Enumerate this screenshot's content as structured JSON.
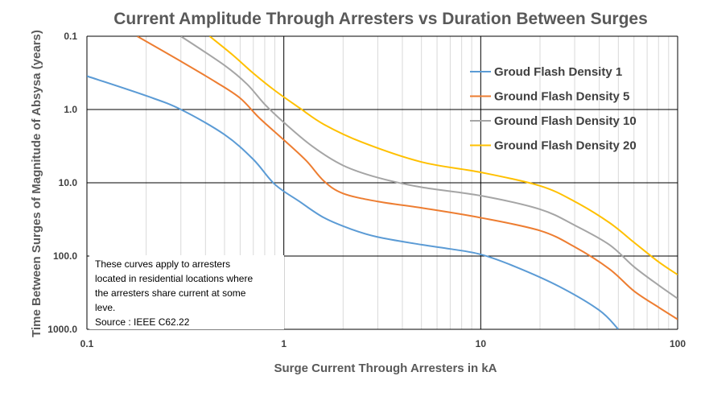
{
  "chart_data": {
    "type": "line",
    "title": "Current Amplitude Through Arresters vs Duration Between Surges",
    "xlabel": "Surge Current Through Arresters in kA",
    "ylabel": "Time Between Surges of Magnitude of Absysa (years)",
    "x_scale": "log",
    "y_scale": "log",
    "y_inverted": true,
    "xlim": [
      0.1,
      100
    ],
    "ylim": [
      0.1,
      1000
    ],
    "x_ticks": [
      0.1,
      1,
      10,
      100
    ],
    "x_tick_labels": [
      "0.1",
      "1",
      "10",
      "100"
    ],
    "y_ticks": [
      0.1,
      1,
      10,
      100,
      1000
    ],
    "y_tick_labels": [
      "0.1",
      "1.0",
      "10.0",
      "100.0",
      "1000.0"
    ],
    "grid": {
      "major": true,
      "minor_x": true
    },
    "legend": "top-right",
    "annotation": {
      "lines": [
        "These curves apply to arresters",
        "located in residential locations where",
        "the arresters share current at some",
        "leve.",
        "Source : IEEE C62.22"
      ]
    },
    "series": [
      {
        "name": "Groud Flash Density 1",
        "color": "#5B9BD5",
        "x": [
          0.1,
          0.2,
          0.3,
          0.5,
          0.7,
          0.9,
          1.2,
          1.6,
          2.2,
          3,
          5,
          7,
          10,
          15,
          25,
          40,
          50
        ],
        "y": [
          0.35,
          0.65,
          1.0,
          2.2,
          4.8,
          10.5,
          18,
          30,
          43,
          55,
          70,
          80,
          95,
          140,
          260,
          550,
          1000
        ]
      },
      {
        "name": "Ground Flash Density 5",
        "color": "#ED7D31",
        "x": [
          0.18,
          0.3,
          0.45,
          0.6,
          0.75,
          1.0,
          1.3,
          1.6,
          2.0,
          3,
          5,
          10,
          20,
          30,
          45,
          60,
          80,
          100
        ],
        "y": [
          0.1,
          0.22,
          0.42,
          0.7,
          1.3,
          2.6,
          5.0,
          9.5,
          14,
          18,
          22,
          30,
          45,
          75,
          150,
          300,
          500,
          730
        ]
      },
      {
        "name": "Ground Flash Density 10",
        "color": "#A5A5A5",
        "x": [
          0.3,
          0.5,
          0.65,
          0.8,
          1.0,
          1.4,
          2.0,
          3,
          5,
          10,
          20,
          30,
          45,
          60,
          80,
          100
        ],
        "y": [
          0.1,
          0.25,
          0.45,
          0.85,
          1.5,
          3.2,
          5.8,
          8.5,
          11.5,
          15,
          23,
          38,
          70,
          140,
          250,
          380
        ]
      },
      {
        "name": "Ground Flash Density 20",
        "color": "#FFC000",
        "x": [
          0.42,
          0.55,
          0.7,
          0.9,
          1.2,
          1.6,
          2.5,
          5,
          10,
          20,
          30,
          45,
          60,
          80,
          100
        ],
        "y": [
          0.1,
          0.18,
          0.32,
          0.55,
          0.95,
          1.6,
          2.8,
          5.2,
          7.2,
          11,
          18,
          35,
          65,
          120,
          180
        ]
      }
    ]
  }
}
